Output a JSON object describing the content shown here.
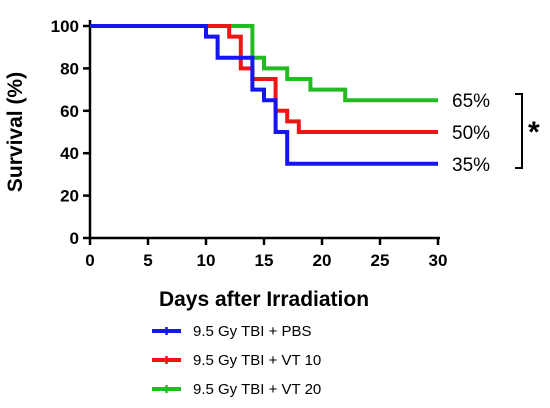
{
  "chart_data": {
    "type": "line",
    "subtype": "kaplan-meier step",
    "title": "",
    "xlabel": "Days after Irradiation",
    "ylabel": "Survival (%)",
    "xlim": [
      0,
      30
    ],
    "ylim": [
      0,
      100
    ],
    "x_ticks": [
      0,
      5,
      10,
      15,
      20,
      25,
      30
    ],
    "y_ticks": [
      0,
      20,
      40,
      60,
      80,
      100
    ],
    "grid": false,
    "legend_position": "bottom",
    "series": [
      {
        "name": "9.5 Gy TBI + PBS",
        "color": "#1515ee",
        "end_label": "35%",
        "x": [
          0,
          10,
          11,
          13,
          14,
          15,
          16,
          17,
          30
        ],
        "y": [
          100,
          95,
          85,
          85,
          70,
          65,
          50,
          35,
          35
        ]
      },
      {
        "name": "9.5 Gy TBI + VT 10",
        "color": "#ee1515",
        "end_label": "50%",
        "x": [
          0,
          12,
          13,
          14,
          16,
          17,
          18,
          30
        ],
        "y": [
          100,
          95,
          80,
          75,
          60,
          55,
          50,
          50
        ]
      },
      {
        "name": "9.5 Gy TBI + VT 20",
        "color": "#22bb22",
        "end_label": "65%",
        "x": [
          0,
          14,
          15,
          17,
          19,
          22,
          30
        ],
        "y": [
          100,
          85,
          80,
          75,
          70,
          65,
          65
        ]
      }
    ],
    "annotations": {
      "significance": "*"
    }
  }
}
